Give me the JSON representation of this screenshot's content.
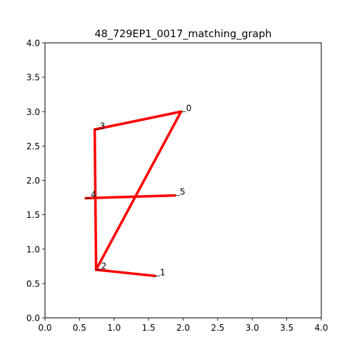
{
  "chart_data": {
    "type": "scatter",
    "title": "48_729EP1_0017_matching_graph",
    "xlabel": "",
    "ylabel": "",
    "xlim": [
      0.0,
      4.0
    ],
    "ylim": [
      0.0,
      4.0
    ],
    "x_ticks": [
      "0.0",
      "0.5",
      "1.0",
      "1.5",
      "2.0",
      "2.5",
      "3.0",
      "3.5",
      "4.0"
    ],
    "y_ticks": [
      "0.0",
      "0.5",
      "1.0",
      "1.5",
      "2.0",
      "2.5",
      "3.0",
      "3.5",
      "4.0"
    ],
    "grid": false,
    "edge_color": "#ff0000",
    "nodes": [
      {
        "id": "0",
        "x": 1.97,
        "y": 3.0
      },
      {
        "id": "1",
        "x": 1.59,
        "y": 0.61
      },
      {
        "id": "2",
        "x": 0.74,
        "y": 0.7
      },
      {
        "id": "3",
        "x": 0.72,
        "y": 2.74
      },
      {
        "id": "4",
        "x": 0.59,
        "y": 1.74
      },
      {
        "id": "5",
        "x": 1.88,
        "y": 1.78
      }
    ],
    "edges": [
      {
        "from": "0",
        "to": "3"
      },
      {
        "from": "0",
        "to": "2"
      },
      {
        "from": "3",
        "to": "2"
      },
      {
        "from": "4",
        "to": "5"
      },
      {
        "from": "2",
        "to": "1"
      }
    ]
  }
}
